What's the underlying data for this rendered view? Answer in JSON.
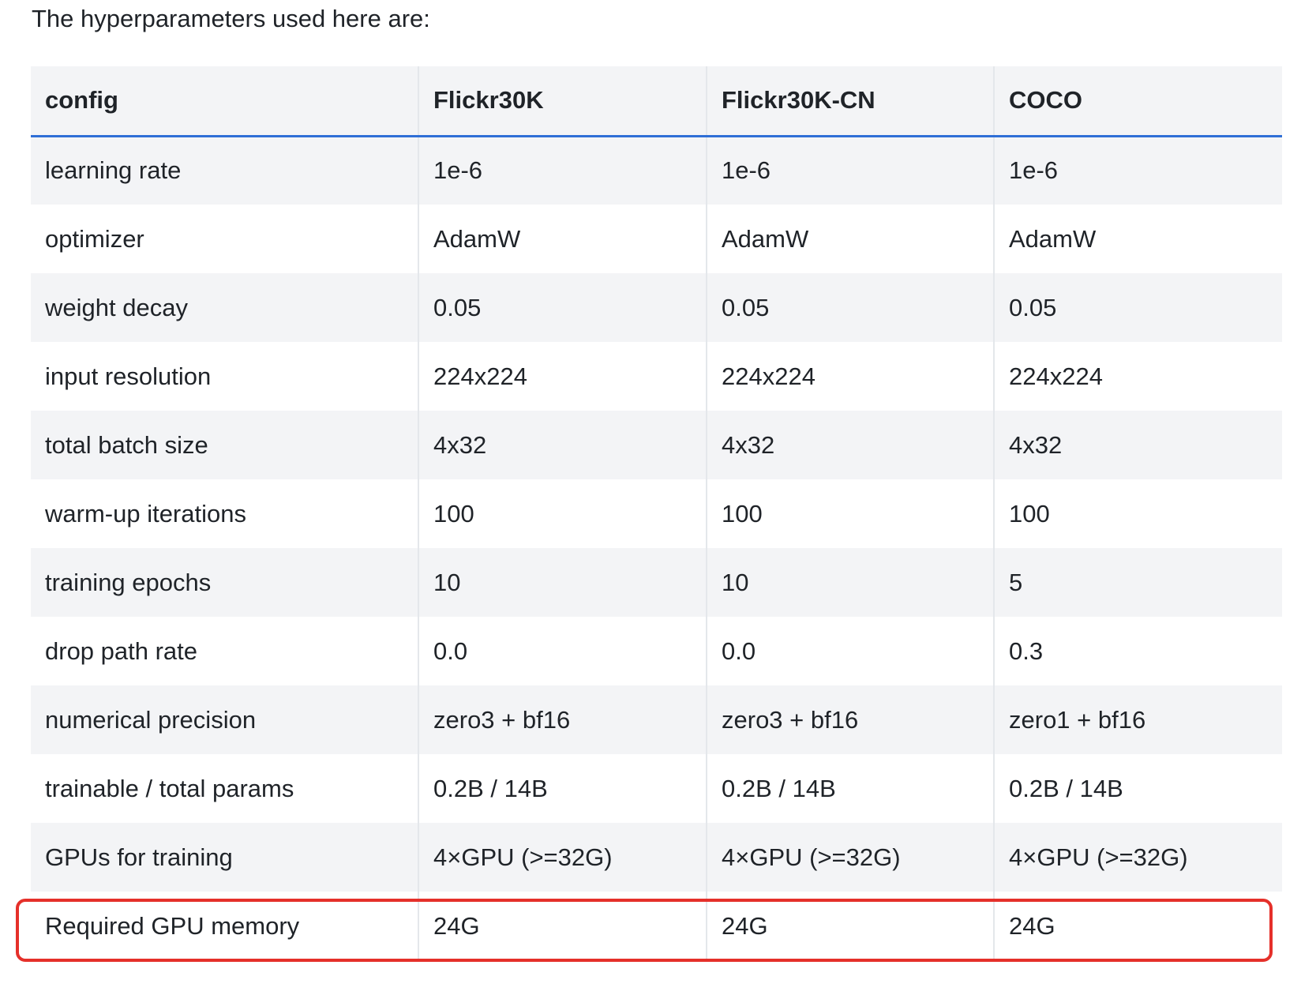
{
  "intro": "The hyperparameters used here are:",
  "table": {
    "headers": [
      "config",
      "Flickr30K",
      "Flickr30K-CN",
      "COCO"
    ],
    "rows": [
      [
        "learning rate",
        "1e-6",
        "1e-6",
        "1e-6"
      ],
      [
        "optimizer",
        "AdamW",
        "AdamW",
        "AdamW"
      ],
      [
        "weight decay",
        "0.05",
        "0.05",
        "0.05"
      ],
      [
        "input resolution",
        "224x224",
        "224x224",
        "224x224"
      ],
      [
        "total batch size",
        "4x32",
        "4x32",
        "4x32"
      ],
      [
        "warm-up iterations",
        "100",
        "100",
        "100"
      ],
      [
        "training epochs",
        "10",
        "10",
        "5"
      ],
      [
        "drop path rate",
        "0.0",
        "0.0",
        "0.3"
      ],
      [
        "numerical precision",
        "zero3 + bf16",
        "zero3 + bf16",
        "zero1 + bf16"
      ],
      [
        "trainable / total params",
        "0.2B / 14B",
        "0.2B / 14B",
        "0.2B / 14B"
      ],
      [
        "GPUs for training",
        "4×GPU (>=32G)",
        "4×GPU (>=32G)",
        "4×GPU (>=32G)"
      ],
      [
        "Required GPU memory",
        "24G",
        "24G",
        "24G"
      ]
    ]
  },
  "colors": {
    "header_rule": "#2f6fd6",
    "highlight_box": "#e5302a",
    "stripe": "#f3f4f6"
  }
}
